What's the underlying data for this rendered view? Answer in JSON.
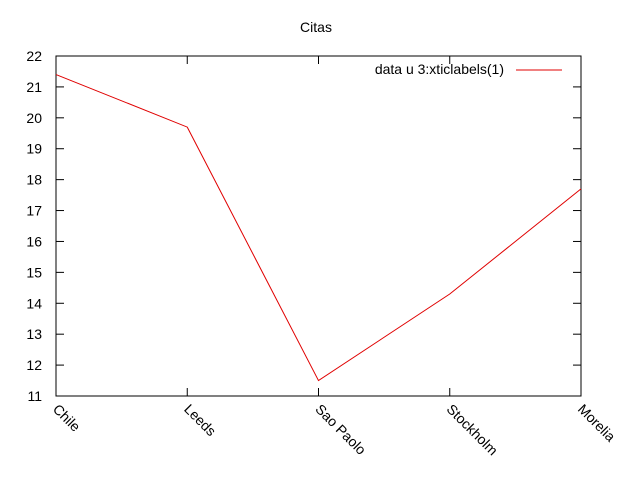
{
  "chart_data": {
    "type": "line",
    "title": "Citas",
    "xlabel": "",
    "ylabel": "",
    "categories": [
      "Chile",
      "Leeds",
      "Sao Paolo",
      "Stockholm",
      "Morelia"
    ],
    "series": [
      {
        "name": "data u 3:xticlabels(1)",
        "values": [
          21.4,
          19.7,
          11.5,
          14.3,
          17.7
        ],
        "color": "#e00000"
      }
    ],
    "ylim": [
      11,
      22
    ],
    "yticks": [
      11,
      12,
      13,
      14,
      15,
      16,
      17,
      18,
      19,
      20,
      21,
      22
    ],
    "grid": false,
    "legend_position": "top-right"
  }
}
